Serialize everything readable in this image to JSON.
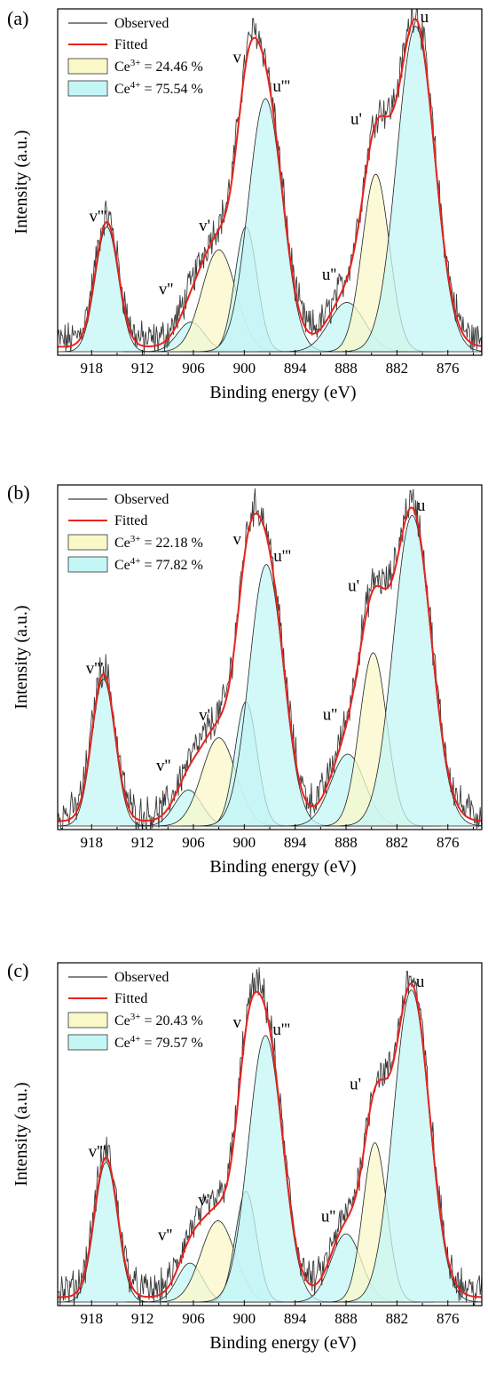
{
  "colors": {
    "observed": "#3a3a3a",
    "fitted": "#e8231c",
    "ce3_fill": "#fbf8c8",
    "ce4_fill": "#c4f6f6",
    "peak_edge": "#222222",
    "axis": "#000000"
  },
  "chart_data": [
    {
      "type": "line",
      "panel_label": "(a)",
      "xlabel": "Binding energy (eV)",
      "ylabel": "Intensity (a.u.)",
      "xlim": [
        922,
        872
      ],
      "x_reversed": true,
      "x_ticks": [
        "918",
        "912",
        "906",
        "900",
        "894",
        "888",
        "882",
        "876"
      ],
      "y_ticks": [],
      "grid": false,
      "legend_position": "top-left",
      "legend": {
        "observed": "Observed",
        "fitted": "Fitted",
        "ce3": {
          "base": "Ce",
          "sup": "3+",
          "rest": " = 24.46 %"
        },
        "ce4": {
          "base": "Ce",
          "sup": "4+",
          "rest": " = 75.54 %"
        }
      },
      "peaks": [
        {
          "name": "v'''",
          "label": "v'''",
          "center": 916.2,
          "height": 0.38,
          "sigma": 1.35,
          "group": "ce4"
        },
        {
          "name": "v''",
          "label": "v''",
          "center": 906.3,
          "height": 0.09,
          "sigma": 1.6,
          "group": "ce4"
        },
        {
          "name": "v'",
          "label": "v'",
          "center": 903.0,
          "height": 0.31,
          "sigma": 2.0,
          "group": "ce3"
        },
        {
          "name": "v",
          "label": "v",
          "center": 899.8,
          "height": 0.38,
          "sigma": 1.3,
          "group": "ce4"
        },
        {
          "name": "u'''",
          "label": "u'''",
          "center": 897.5,
          "height": 0.77,
          "sigma": 2.0,
          "group": "ce4"
        },
        {
          "name": "u''",
          "label": "u''",
          "center": 887.9,
          "height": 0.15,
          "sigma": 2.1,
          "group": "ce4"
        },
        {
          "name": "u'",
          "label": "u'",
          "center": 884.5,
          "height": 0.54,
          "sigma": 1.6,
          "group": "ce3"
        },
        {
          "name": "u",
          "label": "u",
          "center": 879.8,
          "height": 0.99,
          "sigma": 2.2,
          "group": "ce4"
        }
      ]
    },
    {
      "type": "line",
      "panel_label": "(b)",
      "xlabel": "Binding energy (eV)",
      "ylabel": "Intensity (a.u.)",
      "xlim": [
        922,
        872
      ],
      "x_reversed": true,
      "x_ticks": [
        "918",
        "912",
        "906",
        "900",
        "894",
        "888",
        "882",
        "876"
      ],
      "y_ticks": [],
      "grid": false,
      "legend_position": "top-left",
      "legend": {
        "observed": "Observed",
        "fitted": "Fitted",
        "ce3": {
          "base": "Ce",
          "sup": "3+",
          "rest": " = 22.18 %"
        },
        "ce4": {
          "base": "Ce",
          "sup": "4+",
          "rest": " = 77.82 %"
        }
      },
      "peaks": [
        {
          "name": "v'''",
          "label": "v'''",
          "center": 916.6,
          "height": 0.45,
          "sigma": 1.35,
          "group": "ce4"
        },
        {
          "name": "v''",
          "label": "v''",
          "center": 906.6,
          "height": 0.11,
          "sigma": 1.6,
          "group": "ce4"
        },
        {
          "name": "v'",
          "label": "v'",
          "center": 903.0,
          "height": 0.27,
          "sigma": 2.0,
          "group": "ce3"
        },
        {
          "name": "v",
          "label": "v",
          "center": 899.8,
          "height": 0.38,
          "sigma": 1.3,
          "group": "ce4"
        },
        {
          "name": "u'''",
          "label": "u'''",
          "center": 897.4,
          "height": 0.8,
          "sigma": 2.0,
          "group": "ce4"
        },
        {
          "name": "u''",
          "label": "u''",
          "center": 887.8,
          "height": 0.22,
          "sigma": 2.0,
          "group": "ce4"
        },
        {
          "name": "u'",
          "label": "u'",
          "center": 884.8,
          "height": 0.53,
          "sigma": 1.6,
          "group": "ce3"
        },
        {
          "name": "u",
          "label": "u",
          "center": 880.2,
          "height": 0.95,
          "sigma": 2.2,
          "group": "ce4"
        }
      ]
    },
    {
      "type": "line",
      "panel_label": "(c)",
      "xlabel": "Binding energy (eV)",
      "ylabel": "Intensity (a.u.)",
      "xlim": [
        922,
        872
      ],
      "x_reversed": true,
      "x_ticks": [
        "918",
        "912",
        "906",
        "900",
        "894",
        "888",
        "882",
        "876"
      ],
      "y_ticks": [],
      "grid": false,
      "legend_position": "top-left",
      "legend": {
        "observed": "Observed",
        "fitted": "Fitted",
        "ce3": {
          "base": "Ce",
          "sup": "3+",
          "rest": " = 20.43 %"
        },
        "ce4": {
          "base": "Ce",
          "sup": "4+",
          "rest": " = 79.57 %"
        }
      },
      "peaks": [
        {
          "name": "v'''",
          "label": "v'''",
          "center": 916.3,
          "height": 0.43,
          "sigma": 1.35,
          "group": "ce4"
        },
        {
          "name": "v''",
          "label": "v''",
          "center": 906.4,
          "height": 0.12,
          "sigma": 1.5,
          "group": "ce4"
        },
        {
          "name": "v'",
          "label": "v'",
          "center": 903.1,
          "height": 0.25,
          "sigma": 2.0,
          "group": "ce3"
        },
        {
          "name": "v",
          "label": "v",
          "center": 899.8,
          "height": 0.34,
          "sigma": 1.25,
          "group": "ce4"
        },
        {
          "name": "u'''",
          "label": "u'''",
          "center": 897.5,
          "height": 0.82,
          "sigma": 2.0,
          "group": "ce4"
        },
        {
          "name": "u''",
          "label": "u''",
          "center": 888.0,
          "height": 0.21,
          "sigma": 1.8,
          "group": "ce4"
        },
        {
          "name": "u'",
          "label": "u'",
          "center": 884.6,
          "height": 0.49,
          "sigma": 1.4,
          "group": "ce3"
        },
        {
          "name": "u",
          "label": "u",
          "center": 880.3,
          "height": 0.96,
          "sigma": 2.1,
          "group": "ce4"
        }
      ]
    }
  ]
}
